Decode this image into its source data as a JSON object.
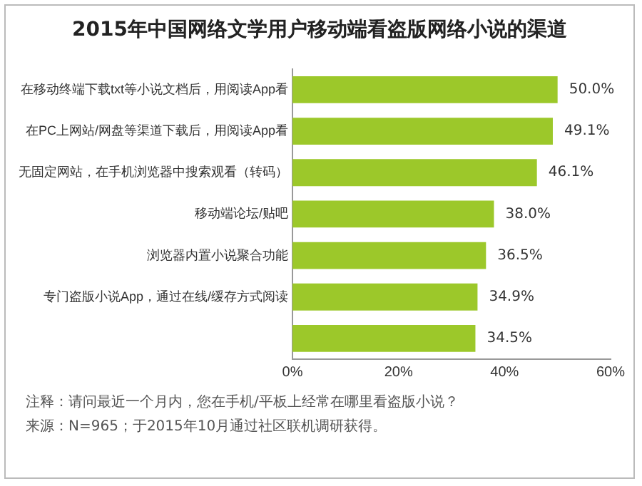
{
  "chart_data": {
    "type": "bar",
    "orientation": "horizontal",
    "title": "2015年中国网络文学用户移动端看盗版网络小说的渠道",
    "categories": [
      "在移动终端下载txt等小说文档后，用阅读App看",
      "在PC上网站/网盘等渠道下载后，用阅读App看",
      "无固定网站，在手机浏览器中搜索观看（转码）",
      "移动端论坛/贴吧",
      "浏览器内置小说聚合功能",
      "专门盗版小说App，通过在线/缓存方式阅读",
      null
    ],
    "values": [
      50.0,
      49.1,
      46.1,
      38.0,
      36.5,
      34.9,
      34.5
    ],
    "value_labels": [
      "50.0%",
      "49.1%",
      "46.1%",
      "38.0%",
      "36.5%",
      "34.9%",
      "34.5%"
    ],
    "color": "#9cc82a",
    "xlim": [
      0,
      60
    ],
    "xticks": [
      {
        "value": 0,
        "label": "0%"
      },
      {
        "value": 20,
        "label": "20%"
      },
      {
        "value": 40,
        "label": "40%"
      },
      {
        "value": 60,
        "label": "60%"
      }
    ],
    "grid": false,
    "legend": false,
    "annotations": [
      "注释：请问最近一个月内，您在手机/平板上经常在哪里看盗版小说？",
      "来源：N=965；于2015年10月通过社区联机调研获得。"
    ]
  }
}
